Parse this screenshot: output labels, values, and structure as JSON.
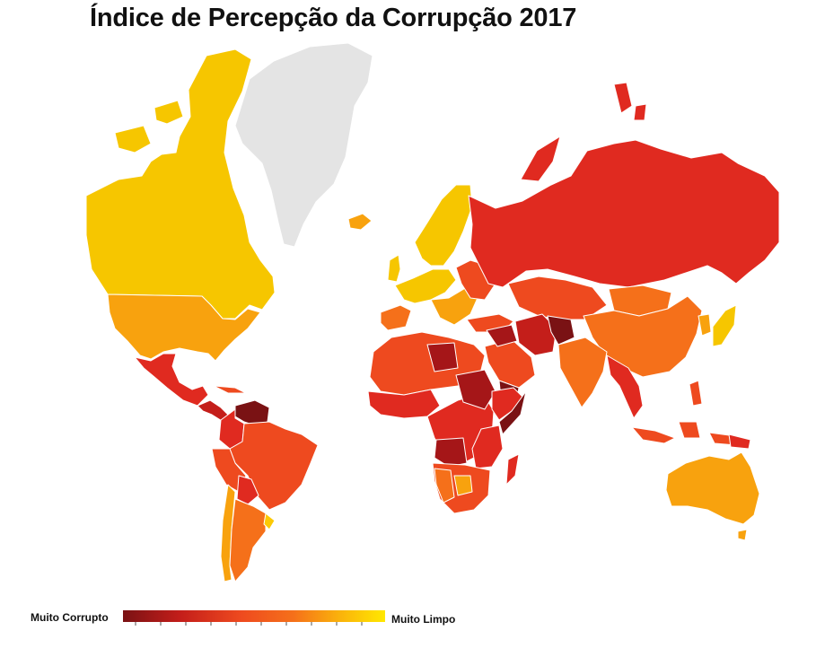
{
  "title": "Índice de Percepção da Corrupção 2017",
  "legend": {
    "min_label": "Muito Corrupto",
    "max_label": "Muito Limpo",
    "colors": [
      "#7a1214",
      "#a51618",
      "#c41e1a",
      "#e02a20",
      "#ee4a1f",
      "#f5701a",
      "#f89412",
      "#fab00c",
      "#fcc905",
      "#ffe800"
    ]
  },
  "colors": {
    "no_data": "#e4e4e4",
    "borders": "#ffffff",
    "very_corrupt": "#7a1214",
    "corrupt_dark": "#a51618",
    "corrupt": "#e02a20",
    "orange_red": "#ee4a1f",
    "orange": "#f5701a",
    "light_orange": "#f8a20e",
    "clean": "#f6c600",
    "very_clean": "#ffe800"
  }
}
